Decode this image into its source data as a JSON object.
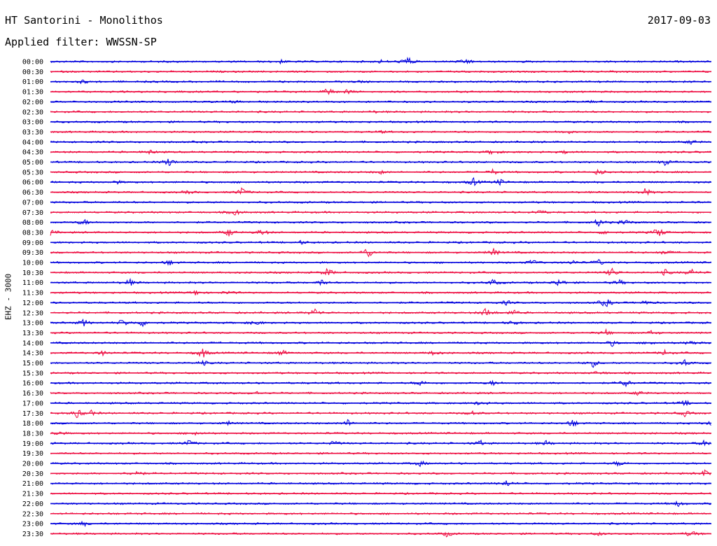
{
  "header": {
    "title": "HT Santorini - Monolithos",
    "date": "2017-09-03",
    "filter": "Applied filter: WWSSN-SP"
  },
  "channel_label": "EHZ - 3000",
  "colors": {
    "blue": "#0000dd",
    "red": "#ee1144"
  },
  "chart_data": {
    "type": "line",
    "title": "HT Santorini - Monolithos",
    "subtitle": "Applied filter: WWSSN-SP",
    "ylabel": "EHZ - 3000",
    "rows": [
      {
        "label": "00:00",
        "color": "blue",
        "events": [
          [
            0.54,
            1.0
          ],
          [
            0.63,
            0.6
          ],
          [
            0.35,
            0.3
          ],
          [
            0.5,
            0.25
          ]
        ]
      },
      {
        "label": "00:30",
        "color": "red",
        "events": []
      },
      {
        "label": "01:00",
        "color": "blue",
        "events": [
          [
            0.05,
            0.3
          ],
          [
            0.47,
            0.2
          ]
        ]
      },
      {
        "label": "01:30",
        "color": "red",
        "events": [
          [
            0.42,
            0.7
          ],
          [
            0.45,
            0.4
          ],
          [
            0.19,
            0.2
          ]
        ]
      },
      {
        "label": "02:00",
        "color": "blue",
        "events": [
          [
            0.28,
            0.2
          ],
          [
            0.82,
            0.2
          ]
        ]
      },
      {
        "label": "02:30",
        "color": "red",
        "events": [
          [
            0.49,
            0.15
          ]
        ]
      },
      {
        "label": "03:00",
        "color": "blue",
        "events": []
      },
      {
        "label": "03:30",
        "color": "red",
        "events": [
          [
            0.78,
            0.5
          ],
          [
            0.5,
            0.2
          ]
        ]
      },
      {
        "label": "04:00",
        "color": "blue",
        "events": [
          [
            0.97,
            0.4
          ]
        ]
      },
      {
        "label": "04:30",
        "color": "red",
        "events": [
          [
            0.15,
            0.4
          ],
          [
            0.67,
            0.6
          ],
          [
            0.78,
            0.3
          ]
        ]
      },
      {
        "label": "05:00",
        "color": "blue",
        "events": [
          [
            0.18,
            0.8
          ],
          [
            0.93,
            0.5
          ]
        ]
      },
      {
        "label": "05:30",
        "color": "red",
        "events": [
          [
            0.67,
            0.5
          ],
          [
            0.83,
            0.6
          ],
          [
            0.5,
            0.3
          ]
        ]
      },
      {
        "label": "06:00",
        "color": "blue",
        "events": [
          [
            0.64,
            0.7
          ],
          [
            0.68,
            0.5
          ],
          [
            0.1,
            0.3
          ]
        ]
      },
      {
        "label": "06:30",
        "color": "red",
        "events": [
          [
            0.29,
            0.8
          ],
          [
            0.9,
            0.7
          ],
          [
            0.21,
            0.3
          ]
        ]
      },
      {
        "label": "07:00",
        "color": "blue",
        "events": []
      },
      {
        "label": "07:30",
        "color": "red",
        "events": [
          [
            0.28,
            0.6
          ],
          [
            0.74,
            0.5
          ]
        ]
      },
      {
        "label": "08:00",
        "color": "blue",
        "events": [
          [
            0.05,
            0.6
          ],
          [
            0.83,
            0.7
          ],
          [
            0.87,
            0.5
          ]
        ]
      },
      {
        "label": "08:30",
        "color": "red",
        "events": [
          [
            0.92,
            1.0
          ],
          [
            0.27,
            0.7
          ],
          [
            0.32,
            0.6
          ],
          [
            0.0,
            0.5
          ],
          [
            0.84,
            0.4
          ]
        ]
      },
      {
        "label": "09:00",
        "color": "blue",
        "events": [
          [
            0.38,
            0.3
          ]
        ]
      },
      {
        "label": "09:30",
        "color": "red",
        "events": [
          [
            0.48,
            1.0
          ],
          [
            0.67,
            0.7
          ],
          [
            0.93,
            0.5
          ]
        ]
      },
      {
        "label": "10:00",
        "color": "blue",
        "events": [
          [
            0.18,
            0.5
          ],
          [
            0.73,
            0.5
          ],
          [
            0.79,
            0.4
          ],
          [
            0.83,
            0.5
          ]
        ]
      },
      {
        "label": "10:30",
        "color": "red",
        "events": [
          [
            0.42,
            0.8
          ],
          [
            0.85,
            0.8
          ],
          [
            0.93,
            0.5
          ],
          [
            0.97,
            0.6
          ]
        ]
      },
      {
        "label": "11:00",
        "color": "blue",
        "events": [
          [
            0.12,
            0.6
          ],
          [
            0.41,
            0.5
          ],
          [
            0.67,
            0.6
          ],
          [
            0.77,
            0.8
          ],
          [
            0.86,
            0.5
          ]
        ]
      },
      {
        "label": "11:30",
        "color": "red",
        "events": [
          [
            0.22,
            0.5
          ],
          [
            0.27,
            0.3
          ]
        ]
      },
      {
        "label": "12:00",
        "color": "blue",
        "events": [
          [
            0.84,
            0.9
          ],
          [
            0.69,
            0.4
          ],
          [
            0.9,
            0.4
          ]
        ]
      },
      {
        "label": "12:30",
        "color": "red",
        "events": [
          [
            0.4,
            0.8
          ],
          [
            0.66,
            1.0
          ],
          [
            0.7,
            0.5
          ]
        ]
      },
      {
        "label": "13:00",
        "color": "blue",
        "events": [
          [
            0.05,
            0.6
          ],
          [
            0.11,
            0.7
          ],
          [
            0.14,
            0.6
          ],
          [
            0.31,
            0.5
          ],
          [
            0.7,
            0.4
          ]
        ]
      },
      {
        "label": "13:30",
        "color": "red",
        "events": [
          [
            0.84,
            0.5
          ],
          [
            0.91,
            0.4
          ]
        ]
      },
      {
        "label": "14:00",
        "color": "blue",
        "events": [
          [
            0.85,
            0.5
          ],
          [
            0.97,
            0.5
          ],
          [
            0.91,
            0.3
          ]
        ]
      },
      {
        "label": "14:30",
        "color": "red",
        "events": [
          [
            0.23,
            1.0
          ],
          [
            0.35,
            0.5
          ],
          [
            0.08,
            0.4
          ],
          [
            0.58,
            0.4
          ],
          [
            0.93,
            0.5
          ]
        ]
      },
      {
        "label": "15:00",
        "color": "blue",
        "events": [
          [
            0.82,
            0.8
          ],
          [
            0.96,
            0.6
          ],
          [
            0.23,
            0.5
          ]
        ]
      },
      {
        "label": "15:30",
        "color": "red",
        "events": [
          [
            0.83,
            0.4
          ]
        ]
      },
      {
        "label": "16:00",
        "color": "blue",
        "events": [
          [
            0.56,
            0.5
          ],
          [
            0.67,
            0.4
          ],
          [
            0.87,
            0.7
          ]
        ]
      },
      {
        "label": "16:30",
        "color": "red",
        "events": [
          [
            0.31,
            0.4
          ],
          [
            0.89,
            0.4
          ]
        ]
      },
      {
        "label": "17:00",
        "color": "blue",
        "events": [
          [
            0.65,
            0.4
          ],
          [
            0.96,
            0.5
          ]
        ]
      },
      {
        "label": "17:30",
        "color": "red",
        "events": [
          [
            0.04,
            0.8
          ],
          [
            0.06,
            0.6
          ],
          [
            0.64,
            0.4
          ],
          [
            0.96,
            0.5
          ]
        ]
      },
      {
        "label": "18:00",
        "color": "blue",
        "events": [
          [
            0.45,
            0.6
          ],
          [
            0.79,
            0.7
          ],
          [
            1.0,
            0.6
          ],
          [
            0.27,
            0.3
          ]
        ]
      },
      {
        "label": "18:30",
        "color": "red",
        "events": [
          [
            0.01,
            0.5
          ],
          [
            0.22,
            0.4
          ]
        ]
      },
      {
        "label": "19:00",
        "color": "blue",
        "events": [
          [
            0.21,
            0.6
          ],
          [
            0.43,
            0.4
          ],
          [
            0.65,
            0.5
          ],
          [
            0.75,
            0.4
          ],
          [
            0.99,
            0.5
          ]
        ]
      },
      {
        "label": "19:30",
        "color": "red",
        "events": []
      },
      {
        "label": "20:00",
        "color": "blue",
        "events": [
          [
            0.56,
            0.5
          ],
          [
            0.86,
            0.5
          ]
        ]
      },
      {
        "label": "20:30",
        "color": "red",
        "events": [
          [
            0.13,
            0.7
          ],
          [
            0.99,
            0.6
          ]
        ]
      },
      {
        "label": "21:00",
        "color": "blue",
        "events": [
          [
            0.69,
            0.6
          ]
        ]
      },
      {
        "label": "21:30",
        "color": "red",
        "events": []
      },
      {
        "label": "22:00",
        "color": "blue",
        "events": [
          [
            0.95,
            0.5
          ]
        ]
      },
      {
        "label": "22:30",
        "color": "red",
        "events": []
      },
      {
        "label": "23:00",
        "color": "blue",
        "events": [
          [
            0.05,
            0.4
          ]
        ]
      },
      {
        "label": "23:30",
        "color": "red",
        "events": [
          [
            0.6,
            0.5
          ],
          [
            0.97,
            0.6
          ],
          [
            0.83,
            0.3
          ]
        ]
      }
    ]
  }
}
